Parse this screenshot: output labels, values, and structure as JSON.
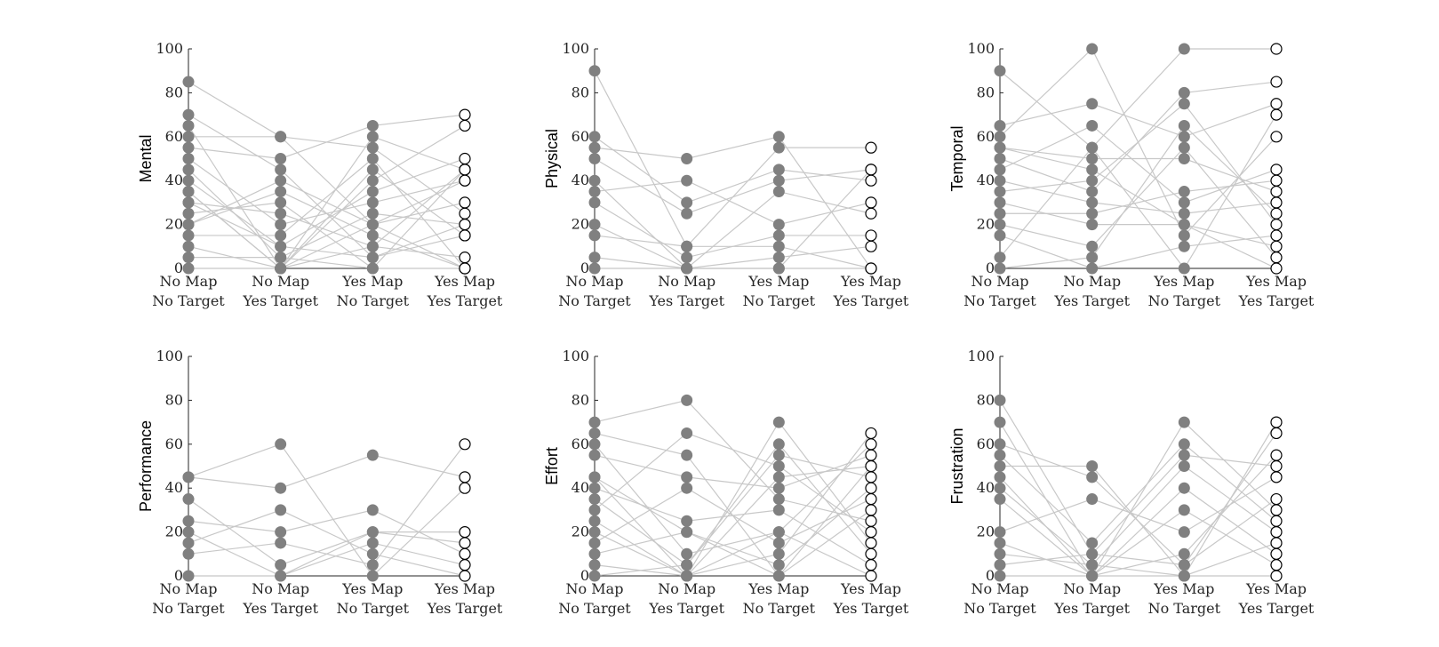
{
  "colors": {
    "point_fill": "#808080",
    "open_point_fill": "#ffffff",
    "open_point_stroke": "#000000",
    "line": "#c8c8c8",
    "axis": "#262626"
  },
  "chart_data": [
    {
      "type": "line",
      "ylabel": "Mental",
      "ylim": [
        0,
        100
      ],
      "yticks": [
        0,
        20,
        40,
        60,
        80,
        100
      ],
      "categories": [
        [
          "No Map",
          "No Target"
        ],
        [
          "No Map",
          "Yes Target"
        ],
        [
          "Yes Map",
          "No Target"
        ],
        [
          "Yes Map",
          "Yes Target"
        ]
      ],
      "open_marker_category_index": 3,
      "series": [
        {
          "values": [
            85,
            60,
            55,
            25
          ]
        },
        {
          "values": [
            70,
            45,
            5,
            15
          ]
        },
        {
          "values": [
            65,
            0,
            60,
            45
          ]
        },
        {
          "values": [
            60,
            60,
            20,
            30
          ]
        },
        {
          "values": [
            55,
            50,
            65,
            70
          ]
        },
        {
          "values": [
            50,
            20,
            30,
            40
          ]
        },
        {
          "values": [
            45,
            5,
            25,
            20
          ]
        },
        {
          "values": [
            40,
            10,
            35,
            50
          ]
        },
        {
          "values": [
            35,
            0,
            40,
            65
          ]
        },
        {
          "values": [
            30,
            25,
            10,
            5
          ]
        },
        {
          "values": [
            25,
            30,
            0,
            45
          ]
        },
        {
          "values": [
            20,
            35,
            15,
            0
          ]
        },
        {
          "values": [
            15,
            15,
            50,
            0
          ]
        },
        {
          "values": [
            10,
            0,
            20,
            40
          ]
        },
        {
          "values": [
            5,
            5,
            0,
            0
          ]
        },
        {
          "values": [
            0,
            0,
            10,
            45
          ]
        },
        {
          "values": [
            20,
            40,
            20,
            0
          ]
        },
        {
          "values": [
            30,
            10,
            5,
            20
          ]
        },
        {
          "values": [
            35,
            0,
            45,
            15
          ]
        }
      ]
    },
    {
      "type": "line",
      "ylabel": "Physical",
      "ylim": [
        0,
        100
      ],
      "yticks": [
        0,
        20,
        40,
        60,
        80,
        100
      ],
      "categories": [
        [
          "No Map",
          "No Target"
        ],
        [
          "No Map",
          "Yes Target"
        ],
        [
          "Yes Map",
          "No Target"
        ],
        [
          "Yes Map",
          "Yes Target"
        ]
      ],
      "open_marker_category_index": 3,
      "series": [
        {
          "values": [
            90,
            10,
            55,
            55
          ]
        },
        {
          "values": [
            60,
            30,
            45,
            40
          ]
        },
        {
          "values": [
            55,
            50,
            60,
            0
          ]
        },
        {
          "values": [
            50,
            25,
            40,
            45
          ]
        },
        {
          "values": [
            40,
            0,
            35,
            25
          ]
        },
        {
          "values": [
            35,
            40,
            20,
            30
          ]
        },
        {
          "values": [
            30,
            5,
            15,
            15
          ]
        },
        {
          "values": [
            20,
            0,
            5,
            10
          ]
        },
        {
          "values": [
            15,
            10,
            10,
            0
          ]
        },
        {
          "values": [
            5,
            0,
            0,
            45
          ]
        },
        {
          "values": [
            0,
            0,
            0,
            0
          ]
        }
      ]
    },
    {
      "type": "line",
      "ylabel": "Temporal",
      "ylim": [
        0,
        100
      ],
      "yticks": [
        0,
        20,
        40,
        60,
        80,
        100
      ],
      "categories": [
        [
          "No Map",
          "No Target"
        ],
        [
          "No Map",
          "Yes Target"
        ],
        [
          "Yes Map",
          "No Target"
        ],
        [
          "Yes Map",
          "Yes Target"
        ]
      ],
      "open_marker_category_index": 3,
      "series": [
        {
          "values": [
            90,
            55,
            100,
            100
          ]
        },
        {
          "values": [
            65,
            75,
            60,
            75
          ]
        },
        {
          "values": [
            60,
            100,
            15,
            60
          ]
        },
        {
          "values": [
            55,
            50,
            50,
            35
          ]
        },
        {
          "values": [
            50,
            35,
            80,
            85
          ]
        },
        {
          "values": [
            45,
            65,
            30,
            45
          ]
        },
        {
          "values": [
            40,
            30,
            25,
            30
          ]
        },
        {
          "values": [
            35,
            40,
            75,
            20
          ]
        },
        {
          "values": [
            30,
            20,
            20,
            10
          ]
        },
        {
          "values": [
            25,
            25,
            35,
            40
          ]
        },
        {
          "values": [
            20,
            10,
            55,
            5
          ]
        },
        {
          "values": [
            15,
            0,
            10,
            15
          ]
        },
        {
          "values": [
            5,
            55,
            0,
            70
          ]
        },
        {
          "values": [
            0,
            5,
            65,
            25
          ]
        },
        {
          "values": [
            55,
            45,
            20,
            0
          ]
        }
      ]
    },
    {
      "type": "line",
      "ylabel": "Performance",
      "ylim": [
        0,
        100
      ],
      "yticks": [
        0,
        20,
        40,
        60,
        80,
        100
      ],
      "categories": [
        [
          "No Map",
          "No Target"
        ],
        [
          "No Map",
          "Yes Target"
        ],
        [
          "Yes Map",
          "No Target"
        ],
        [
          "Yes Map",
          "Yes Target"
        ]
      ],
      "open_marker_category_index": 3,
      "series": [
        {
          "values": [
            45,
            60,
            0,
            40
          ]
        },
        {
          "values": [
            45,
            40,
            55,
            45
          ]
        },
        {
          "values": [
            35,
            5,
            20,
            20
          ]
        },
        {
          "values": [
            25,
            20,
            30,
            10
          ]
        },
        {
          "values": [
            20,
            0,
            15,
            5
          ]
        },
        {
          "values": [
            15,
            30,
            10,
            0
          ]
        },
        {
          "values": [
            10,
            15,
            5,
            60
          ]
        },
        {
          "values": [
            0,
            0,
            20,
            15
          ]
        }
      ]
    },
    {
      "type": "line",
      "ylabel": "Effort",
      "ylim": [
        0,
        100
      ],
      "yticks": [
        0,
        20,
        40,
        60,
        80,
        100
      ],
      "categories": [
        [
          "No Map",
          "No Target"
        ],
        [
          "No Map",
          "Yes Target"
        ],
        [
          "Yes Map",
          "No Target"
        ],
        [
          "Yes Map",
          "Yes Target"
        ]
      ],
      "open_marker_category_index": 3,
      "series": [
        {
          "values": [
            70,
            80,
            35,
            25
          ]
        },
        {
          "values": [
            65,
            55,
            0,
            50
          ]
        },
        {
          "values": [
            60,
            10,
            20,
            60
          ]
        },
        {
          "values": [
            55,
            45,
            40,
            55
          ]
        },
        {
          "values": [
            45,
            0,
            70,
            15
          ]
        },
        {
          "values": [
            40,
            25,
            30,
            5
          ]
        },
        {
          "values": [
            35,
            5,
            55,
            45
          ]
        },
        {
          "values": [
            30,
            65,
            50,
            20
          ]
        },
        {
          "values": [
            20,
            0,
            10,
            65
          ]
        },
        {
          "values": [
            15,
            40,
            15,
            35
          ]
        },
        {
          "values": [
            10,
            20,
            5,
            40
          ]
        },
        {
          "values": [
            5,
            0,
            20,
            0
          ]
        },
        {
          "values": [
            0,
            5,
            60,
            10
          ]
        },
        {
          "values": [
            45,
            20,
            0,
            30
          ]
        },
        {
          "values": [
            25,
            0,
            45,
            50
          ]
        }
      ]
    },
    {
      "type": "line",
      "ylabel": "Frustration",
      "ylim": [
        0,
        100
      ],
      "yticks": [
        0,
        20,
        40,
        60,
        80,
        100
      ],
      "categories": [
        [
          "No Map",
          "No Target"
        ],
        [
          "No Map",
          "Yes Target"
        ],
        [
          "Yes Map",
          "No Target"
        ],
        [
          "Yes Map",
          "Yes Target"
        ]
      ],
      "open_marker_category_index": 3,
      "series": [
        {
          "values": [
            80,
            10,
            55,
            50
          ]
        },
        {
          "values": [
            70,
            0,
            70,
            30
          ]
        },
        {
          "values": [
            60,
            45,
            5,
            65
          ]
        },
        {
          "values": [
            55,
            15,
            60,
            25
          ]
        },
        {
          "values": [
            50,
            50,
            0,
            70
          ]
        },
        {
          "values": [
            45,
            0,
            30,
            5
          ]
        },
        {
          "values": [
            40,
            5,
            50,
            20
          ]
        },
        {
          "values": [
            35,
            0,
            10,
            55
          ]
        },
        {
          "values": [
            20,
            35,
            20,
            45
          ]
        },
        {
          "values": [
            15,
            0,
            40,
            10
          ]
        },
        {
          "values": [
            10,
            5,
            0,
            0
          ]
        },
        {
          "values": [
            5,
            10,
            5,
            35
          ]
        },
        {
          "values": [
            0,
            0,
            0,
            15
          ]
        }
      ]
    }
  ]
}
